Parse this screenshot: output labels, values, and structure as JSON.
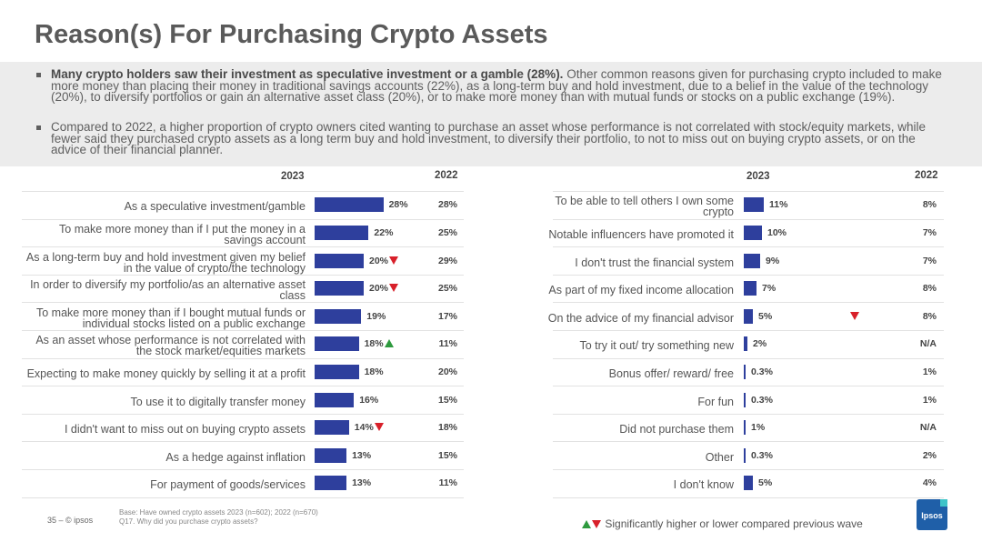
{
  "title": "Reason(s) For Purchasing Crypto Assets",
  "summary": {
    "bullet1_bold": "Many crypto holders saw their investment as speculative investment or a gamble (28%).",
    "bullet1_rest": " Other common reasons given for purchasing crypto included to make more money than placing their money in traditional savings accounts (22%), as a long-term buy and hold investment, due to a belief in the value of the technology (20%), to diversify portfolios or gain an alternative asset class (20%), or to make more money than with mutual funds or stocks on a public exchange (19%).",
    "bullet2": "Compared to 2022, a higher proportion of crypto owners cited wanting to purchase an asset whose performance is not correlated with stock/equity markets, while fewer said they purchased crypto assets as a long term buy and hold investment, to diversify their portfolio, to not to miss out on buying crypto assets, or on the advice of their financial planner."
  },
  "colors": {
    "bar": "#2e3f9d",
    "up": "#2e9a3e",
    "down": "#d8202a"
  },
  "chart_data": [
    {
      "type": "bar",
      "orientation": "horizontal",
      "header_current": "2023",
      "header_previous": "2022",
      "categories": [
        "As a speculative investment/gamble",
        "To make more money than if I put the money in a savings account",
        "As a long-term buy and hold investment given my belief in the value of crypto/the technology",
        "In order to diversify my portfolio/as an alternative asset class",
        "To make more money than if I bought mutual funds or individual stocks listed on a public exchange",
        "As an asset whose performance is not correlated with the stock market/equities markets",
        "Expecting to make money quickly by selling it at a profit",
        "To use it to digitally transfer money",
        "I didn't want to miss out on buying crypto assets",
        "As a hedge against inflation",
        "For payment of goods/services"
      ],
      "series": [
        {
          "name": "2023",
          "values": [
            28,
            22,
            20,
            20,
            19,
            18,
            18,
            16,
            14,
            13,
            13
          ]
        }
      ],
      "value_labels": [
        "28%",
        "22%",
        "20%",
        "20%",
        "19%",
        "18%",
        "18%",
        "16%",
        "14%",
        "13%",
        "13%"
      ],
      "previous_labels": [
        "28%",
        "25%",
        "29%",
        "25%",
        "17%",
        "11%",
        "20%",
        "15%",
        "18%",
        "15%",
        "11%"
      ],
      "significance": [
        "",
        "",
        "down",
        "down",
        "",
        "up",
        "",
        "",
        "down",
        "",
        ""
      ]
    },
    {
      "type": "bar",
      "orientation": "horizontal",
      "header_current": "2023",
      "header_previous": "2022",
      "categories": [
        "To be able to tell others I own some crypto",
        "Notable influencers have promoted it",
        "I don't trust the financial system",
        "As part of my fixed income allocation",
        "On the advice of my financial advisor",
        "To try it out/ try something new",
        "Bonus offer/ reward/ free",
        "For fun",
        "Did not purchase them",
        "Other",
        "I don't know"
      ],
      "series": [
        {
          "name": "2023",
          "values": [
            11,
            10,
            9,
            7,
            5,
            2,
            0.3,
            0.3,
            1,
            0.3,
            5
          ]
        }
      ],
      "value_labels": [
        "11%",
        "10%",
        "9%",
        "7%",
        "5%",
        "2%",
        "0.3%",
        "0.3%",
        "1%",
        "0.3%",
        "5%"
      ],
      "previous_labels": [
        "8%",
        "7%",
        "7%",
        "8%",
        "8%",
        "N/A",
        "1%",
        "1%",
        "N/A",
        "2%",
        "4%"
      ],
      "significance": [
        "",
        "",
        "",
        "",
        "down",
        "",
        "",
        "",
        "",
        "",
        ""
      ]
    }
  ],
  "footer": {
    "page": "35 –  © ipsos",
    "base": "Base: Have owned crypto assets 2023 (n=602); 2022 (n=670)",
    "question": "Q17. Why did you purchase crypto assets?",
    "legend": "Significantly higher or lower compared previous wave",
    "logo_text": "Ipsos"
  }
}
